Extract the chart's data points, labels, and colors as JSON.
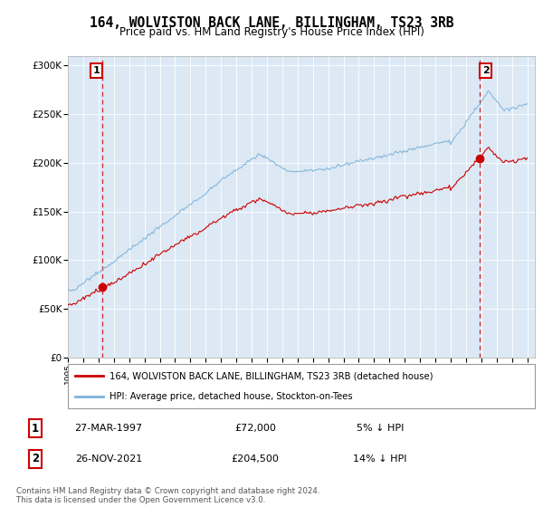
{
  "title": "164, WOLVISTON BACK LANE, BILLINGHAM, TS23 3RB",
  "subtitle": "Price paid vs. HM Land Registry's House Price Index (HPI)",
  "legend_line1": "164, WOLVISTON BACK LANE, BILLINGHAM, TS23 3RB (detached house)",
  "legend_line2": "HPI: Average price, detached house, Stockton-on-Tees",
  "footnote": "Contains HM Land Registry data © Crown copyright and database right 2024.\nThis data is licensed under the Open Government Licence v3.0.",
  "annotation1_date": "27-MAR-1997",
  "annotation1_price": "£72,000",
  "annotation1_hpi": "5% ↓ HPI",
  "annotation2_date": "26-NOV-2021",
  "annotation2_price": "£204,500",
  "annotation2_hpi": "14% ↓ HPI",
  "sale1_year": 1997.23,
  "sale1_value": 72000,
  "sale2_year": 2021.9,
  "sale2_value": 204500,
  "hpi_color": "#7fb2d8",
  "price_color": "#cc0000",
  "dashed_color": "#cc0000",
  "background_color": "#dce9f5",
  "ylim_min": 0,
  "ylim_max": 310000,
  "xlim_min": 1995.0,
  "xlim_max": 2025.5
}
